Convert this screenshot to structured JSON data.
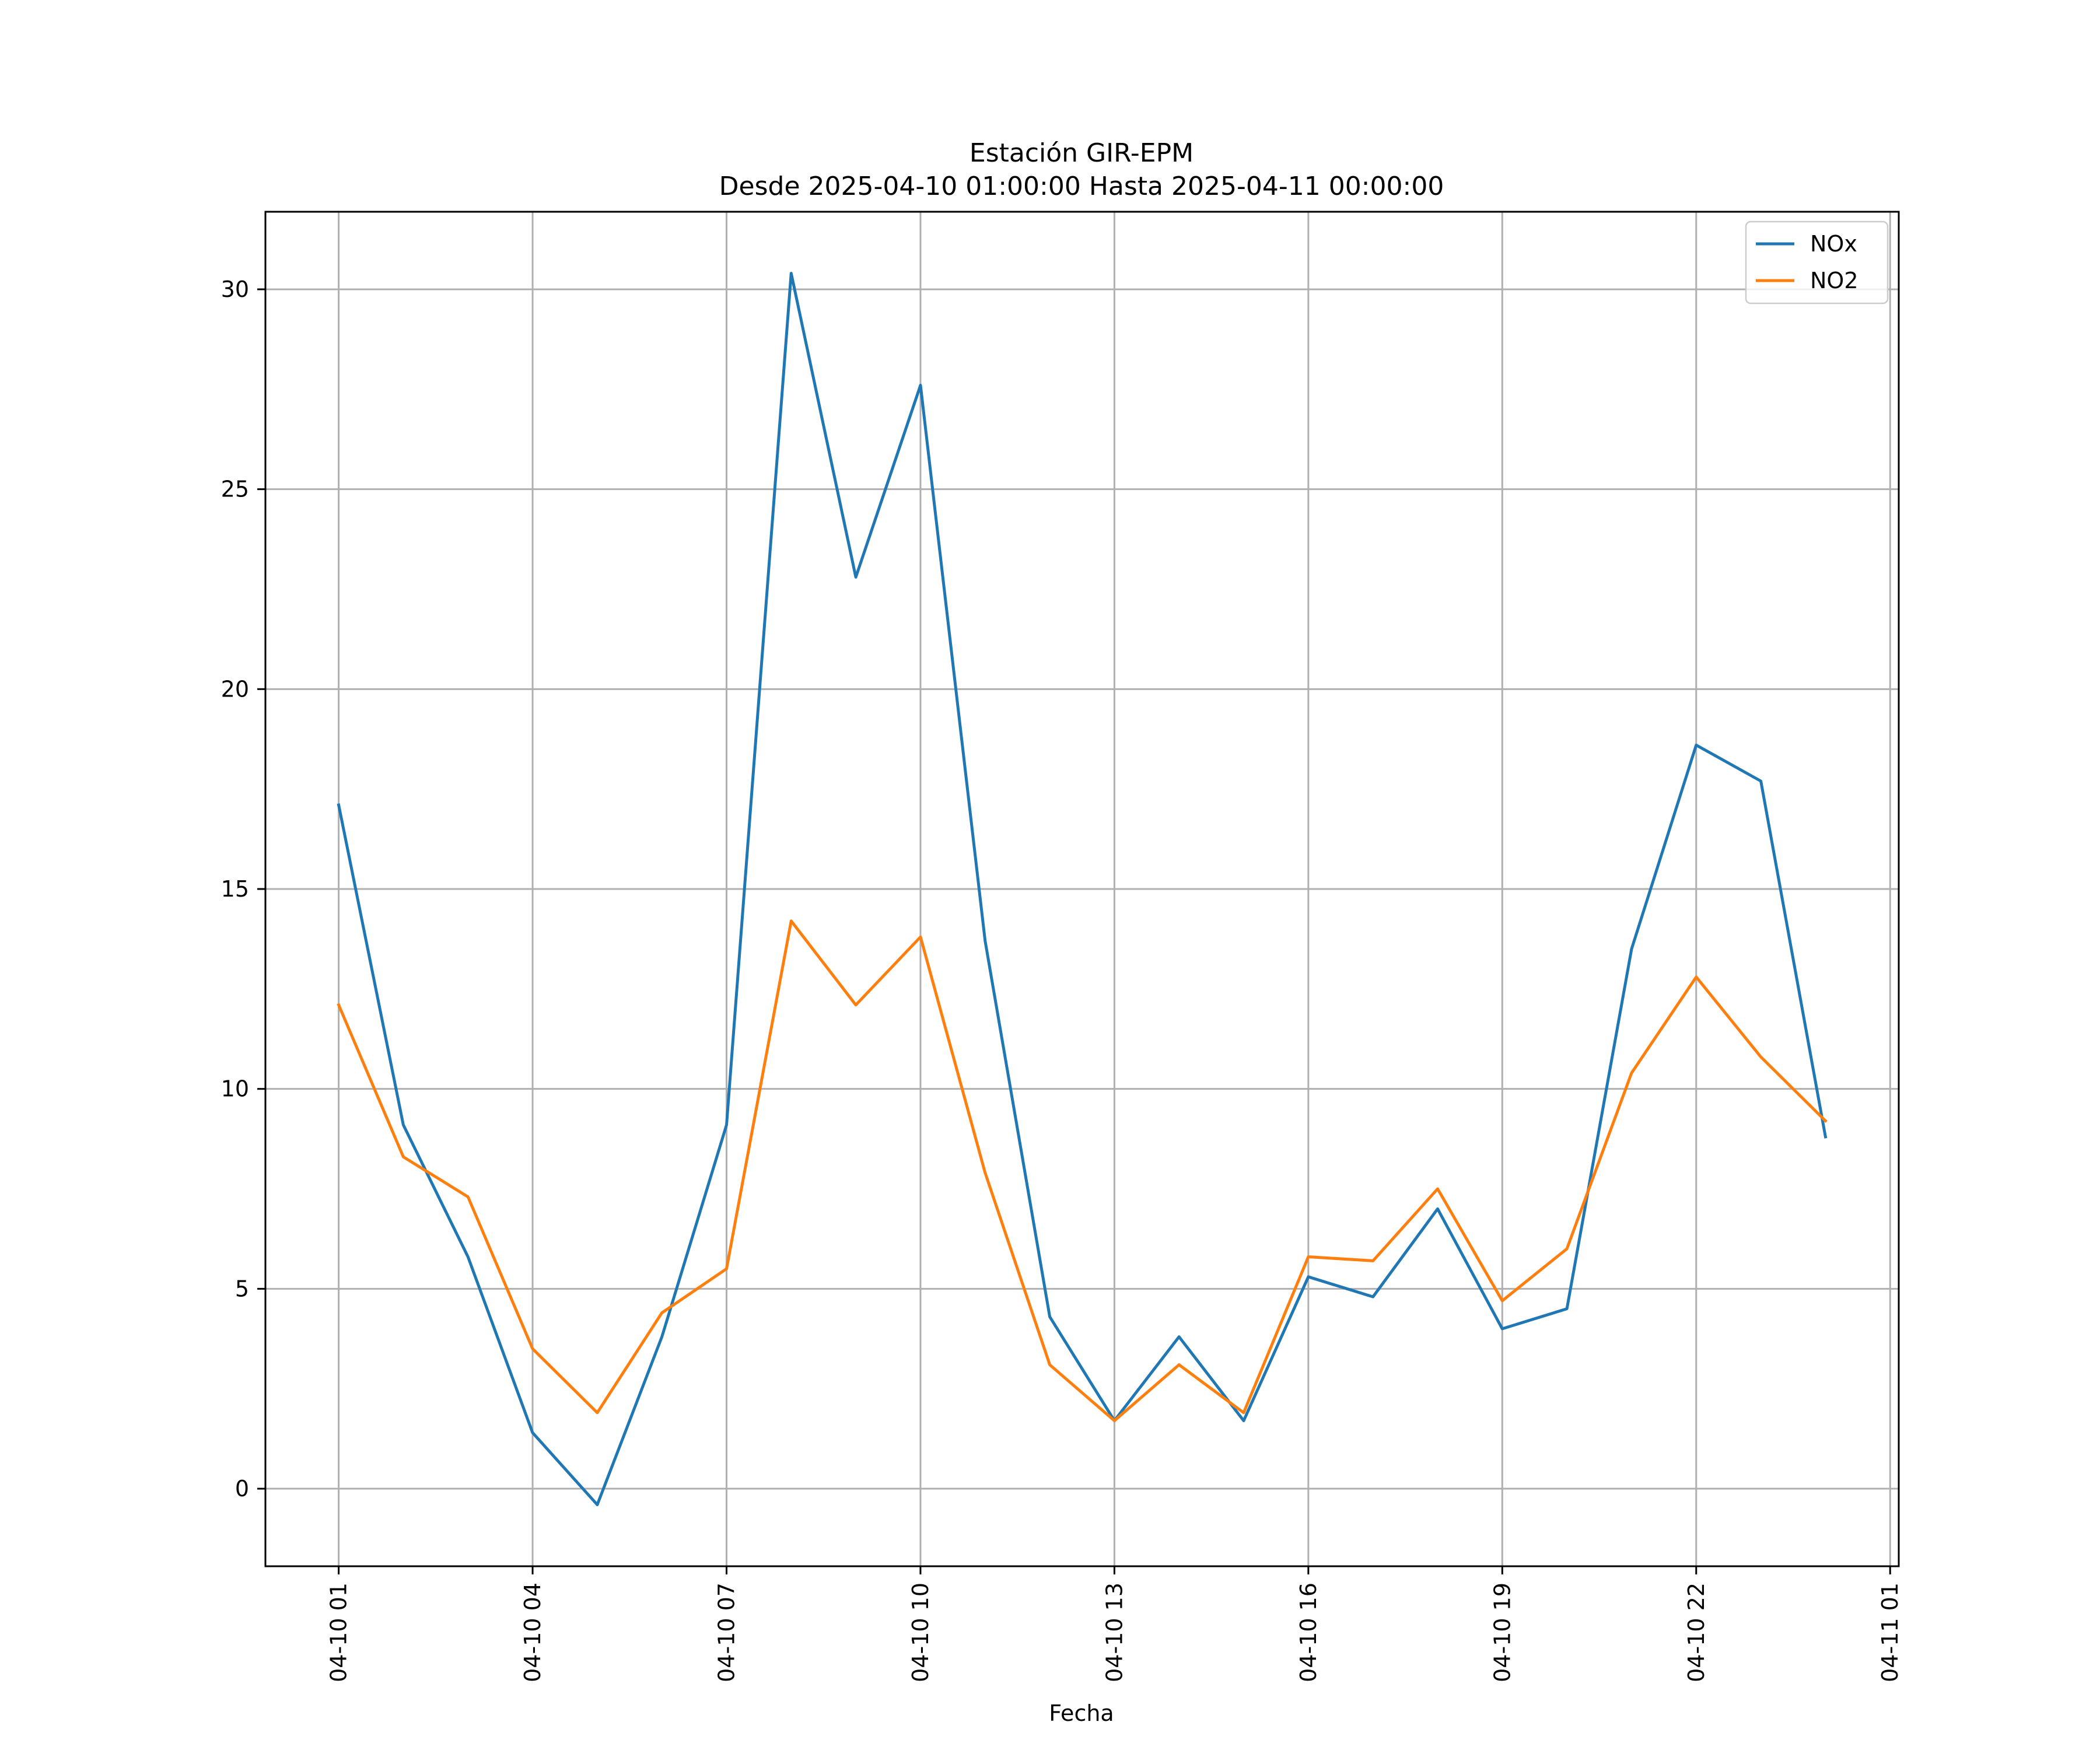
{
  "chart_data": {
    "type": "line",
    "title": "Estación GIR-EPM",
    "subtitle": "Desde 2025-04-10 01:00:00 Hasta 2025-04-11 00:00:00",
    "xlabel": "Fecha",
    "ylabel": "",
    "x": [
      "2025-04-10 01:00",
      "2025-04-10 02:00",
      "2025-04-10 03:00",
      "2025-04-10 04:00",
      "2025-04-10 05:00",
      "2025-04-10 06:00",
      "2025-04-10 07:00",
      "2025-04-10 08:00",
      "2025-04-10 09:00",
      "2025-04-10 10:00",
      "2025-04-10 11:00",
      "2025-04-10 12:00",
      "2025-04-10 13:00",
      "2025-04-10 14:00",
      "2025-04-10 15:00",
      "2025-04-10 16:00",
      "2025-04-10 17:00",
      "2025-04-10 18:00",
      "2025-04-10 19:00",
      "2025-04-10 20:00",
      "2025-04-10 21:00",
      "2025-04-10 22:00",
      "2025-04-10 23:00",
      "2025-04-11 00:00"
    ],
    "series": [
      {
        "name": "NOx",
        "color": "#1f77b4",
        "values": [
          17.1,
          9.1,
          5.8,
          1.4,
          -0.4,
          3.8,
          9.1,
          30.4,
          22.8,
          27.6,
          13.7,
          4.3,
          1.7,
          3.8,
          1.7,
          5.3,
          4.8,
          7.0,
          4.0,
          4.5,
          13.5,
          18.6,
          17.7,
          8.8
        ]
      },
      {
        "name": "NO2",
        "color": "#ff7f0e",
        "values": [
          12.1,
          8.3,
          7.3,
          3.5,
          1.9,
          4.4,
          5.5,
          14.2,
          12.1,
          13.8,
          7.9,
          3.1,
          1.7,
          3.1,
          1.9,
          5.8,
          5.7,
          7.5,
          4.7,
          6.0,
          10.4,
          12.8,
          10.8,
          9.2
        ]
      }
    ],
    "xlim": [
      "2025-04-09 23:52",
      "2025-04-11 01:08"
    ],
    "ylim": [
      -1.94,
      31.94
    ],
    "xticks": [
      {
        "value": "2025-04-10 01:00",
        "label": "04-10 01"
      },
      {
        "value": "2025-04-10 04:00",
        "label": "04-10 04"
      },
      {
        "value": "2025-04-10 07:00",
        "label": "04-10 07"
      },
      {
        "value": "2025-04-10 10:00",
        "label": "04-10 10"
      },
      {
        "value": "2025-04-10 13:00",
        "label": "04-10 13"
      },
      {
        "value": "2025-04-10 16:00",
        "label": "04-10 16"
      },
      {
        "value": "2025-04-10 19:00",
        "label": "04-10 19"
      },
      {
        "value": "2025-04-10 22:00",
        "label": "04-10 22"
      },
      {
        "value": "2025-04-11 01:00",
        "label": "04-11 01"
      }
    ],
    "yticks": [
      {
        "value": 0,
        "label": "0"
      },
      {
        "value": 5,
        "label": "5"
      },
      {
        "value": 10,
        "label": "10"
      },
      {
        "value": 15,
        "label": "15"
      },
      {
        "value": 20,
        "label": "20"
      },
      {
        "value": 25,
        "label": "25"
      },
      {
        "value": 30,
        "label": "30"
      }
    ],
    "grid": true,
    "legend": "top-right",
    "gridcolor": "#b0b0b0"
  }
}
